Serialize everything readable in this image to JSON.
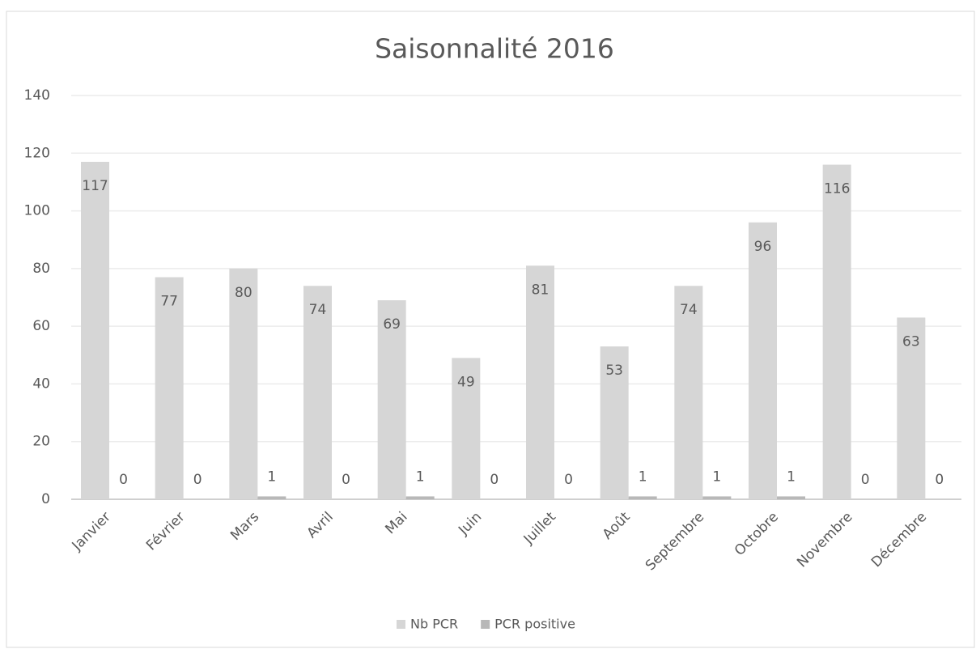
{
  "chart_data": {
    "type": "bar",
    "title": "Saisonnalité 2016",
    "categories": [
      "Janvier",
      "Février",
      "Mars",
      "Avril",
      "Mai",
      "Juin",
      "Juillet",
      "Août",
      "Septembre",
      "Octobre",
      "Novembre",
      "Décembre"
    ],
    "series": [
      {
        "name": "Nb PCR",
        "color": "#d6d6d6",
        "values": [
          117,
          77,
          80,
          74,
          69,
          49,
          81,
          53,
          74,
          96,
          116,
          63
        ]
      },
      {
        "name": "PCR positive",
        "color": "#b8b8b8",
        "values": [
          0,
          0,
          1,
          0,
          1,
          0,
          0,
          1,
          1,
          1,
          0,
          0
        ]
      }
    ],
    "ylim": [
      0,
      140
    ],
    "yticks": [
      0,
      20,
      40,
      60,
      80,
      100,
      120,
      140
    ],
    "grid": true,
    "legend": "bottom"
  }
}
